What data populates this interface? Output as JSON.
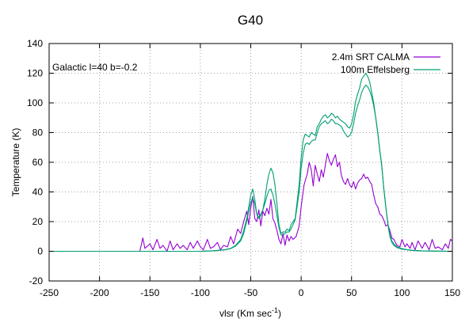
{
  "chart_data": {
    "type": "line",
    "title": "G40",
    "xlabel": "vlsr (Km sec",
    "xlabel_sup": "-1",
    "xlabel_close": ")",
    "ylabel": "Temperature (K)",
    "annotation": "Galactic l=40 b=-0.2",
    "xlim": [
      -250,
      150
    ],
    "ylim": [
      -20,
      140
    ],
    "xticks": [
      -250,
      -200,
      -150,
      -100,
      -50,
      0,
      50,
      100,
      150
    ],
    "yticks": [
      -20,
      0,
      20,
      40,
      60,
      80,
      100,
      120,
      140
    ],
    "grid": true,
    "legend_position": "top-right",
    "series": [
      {
        "name": "2.4m SRT CALMA",
        "color": "#9400d3",
        "points": [
          [
            -160,
            0
          ],
          [
            -157,
            9
          ],
          [
            -155,
            2
          ],
          [
            -150,
            5
          ],
          [
            -147,
            1
          ],
          [
            -143,
            8
          ],
          [
            -140,
            2
          ],
          [
            -137,
            4
          ],
          [
            -133,
            0
          ],
          [
            -130,
            7
          ],
          [
            -127,
            1
          ],
          [
            -123,
            5
          ],
          [
            -120,
            2
          ],
          [
            -117,
            4
          ],
          [
            -113,
            1
          ],
          [
            -110,
            6
          ],
          [
            -107,
            2
          ],
          [
            -103,
            7
          ],
          [
            -100,
            3
          ],
          [
            -97,
            1
          ],
          [
            -93,
            8
          ],
          [
            -90,
            2
          ],
          [
            -87,
            3
          ],
          [
            -83,
            6
          ],
          [
            -80,
            1
          ],
          [
            -77,
            4
          ],
          [
            -73,
            3
          ],
          [
            -70,
            10
          ],
          [
            -67,
            5
          ],
          [
            -63,
            15
          ],
          [
            -60,
            12
          ],
          [
            -57,
            20
          ],
          [
            -54,
            27
          ],
          [
            -52,
            18
          ],
          [
            -50,
            29
          ],
          [
            -48,
            37
          ],
          [
            -46,
            22
          ],
          [
            -44,
            20
          ],
          [
            -42,
            28
          ],
          [
            -40,
            17
          ],
          [
            -38,
            27
          ],
          [
            -36,
            24
          ],
          [
            -34,
            29
          ],
          [
            -32,
            25
          ],
          [
            -30,
            35
          ],
          [
            -28,
            22
          ],
          [
            -26,
            19
          ],
          [
            -24,
            14
          ],
          [
            -22,
            8
          ],
          [
            -20,
            5
          ],
          [
            -18,
            12
          ],
          [
            -16,
            4
          ],
          [
            -14,
            11
          ],
          [
            -12,
            7
          ],
          [
            -10,
            10
          ],
          [
            -8,
            8
          ],
          [
            -5,
            10
          ],
          [
            -2,
            17
          ],
          [
            0,
            30
          ],
          [
            3,
            45
          ],
          [
            6,
            52
          ],
          [
            8,
            60
          ],
          [
            10,
            55
          ],
          [
            12,
            44
          ],
          [
            14,
            58
          ],
          [
            16,
            52
          ],
          [
            18,
            47
          ],
          [
            20,
            55
          ],
          [
            22,
            50
          ],
          [
            24,
            58
          ],
          [
            26,
            66
          ],
          [
            28,
            61
          ],
          [
            30,
            58
          ],
          [
            32,
            62
          ],
          [
            34,
            65
          ],
          [
            36,
            57
          ],
          [
            38,
            60
          ],
          [
            40,
            51
          ],
          [
            42,
            47
          ],
          [
            44,
            45
          ],
          [
            46,
            49
          ],
          [
            48,
            45
          ],
          [
            50,
            43
          ],
          [
            52,
            47
          ],
          [
            54,
            42
          ],
          [
            56,
            46
          ],
          [
            58,
            48
          ],
          [
            60,
            49
          ],
          [
            62,
            52
          ],
          [
            64,
            49
          ],
          [
            66,
            50
          ],
          [
            68,
            47
          ],
          [
            70,
            45
          ],
          [
            72,
            38
          ],
          [
            74,
            32
          ],
          [
            76,
            30
          ],
          [
            78,
            25
          ],
          [
            80,
            24
          ],
          [
            82,
            21
          ],
          [
            84,
            17
          ],
          [
            86,
            18
          ],
          [
            88,
            14
          ],
          [
            90,
            9
          ],
          [
            92,
            8
          ],
          [
            95,
            4
          ],
          [
            98,
            3
          ],
          [
            100,
            8
          ],
          [
            103,
            3
          ],
          [
            105,
            5
          ],
          [
            108,
            2
          ],
          [
            110,
            6
          ],
          [
            113,
            1
          ],
          [
            116,
            7
          ],
          [
            120,
            2
          ],
          [
            123,
            6
          ],
          [
            127,
            1
          ],
          [
            130,
            8
          ],
          [
            133,
            2
          ],
          [
            136,
            3
          ],
          [
            140,
            1
          ],
          [
            143,
            5
          ],
          [
            146,
            2
          ],
          [
            148,
            8
          ],
          [
            150,
            7
          ]
        ]
      },
      {
        "name": "100m Effelsberg",
        "color": "#009e73",
        "points": [
          [
            -250,
            0
          ],
          [
            -200,
            0
          ],
          [
            -150,
            0
          ],
          [
            -120,
            0
          ],
          [
            -100,
            0
          ],
          [
            -90,
            0.2
          ],
          [
            -85,
            0.5
          ],
          [
            -80,
            0.8
          ],
          [
            -75,
            1.2
          ],
          [
            -70,
            2
          ],
          [
            -65,
            4
          ],
          [
            -60,
            8
          ],
          [
            -57,
            14
          ],
          [
            -54,
            22
          ],
          [
            -52,
            30
          ],
          [
            -50,
            38
          ],
          [
            -48,
            42
          ],
          [
            -46,
            35
          ],
          [
            -44,
            25
          ],
          [
            -42,
            22
          ],
          [
            -40,
            24
          ],
          [
            -38,
            28
          ],
          [
            -36,
            35
          ],
          [
            -34,
            45
          ],
          [
            -32,
            52
          ],
          [
            -30,
            56
          ],
          [
            -28,
            53
          ],
          [
            -26,
            45
          ],
          [
            -24,
            32
          ],
          [
            -22,
            18
          ],
          [
            -20,
            12
          ],
          [
            -18,
            13
          ],
          [
            -16,
            13
          ],
          [
            -14,
            15
          ],
          [
            -12,
            14
          ],
          [
            -10,
            18
          ],
          [
            -8,
            20
          ],
          [
            -6,
            22
          ],
          [
            -4,
            33
          ],
          [
            -2,
            45
          ],
          [
            0,
            63
          ],
          [
            2,
            75
          ],
          [
            4,
            79
          ],
          [
            6,
            78
          ],
          [
            8,
            77
          ],
          [
            10,
            80
          ],
          [
            12,
            79
          ],
          [
            14,
            78
          ],
          [
            16,
            84
          ],
          [
            18,
            86
          ],
          [
            20,
            89
          ],
          [
            22,
            91
          ],
          [
            24,
            92
          ],
          [
            26,
            90
          ],
          [
            28,
            91
          ],
          [
            30,
            93
          ],
          [
            32,
            92
          ],
          [
            34,
            90
          ],
          [
            36,
            91
          ],
          [
            38,
            89
          ],
          [
            40,
            88
          ],
          [
            42,
            87
          ],
          [
            44,
            86
          ],
          [
            46,
            84
          ],
          [
            48,
            83
          ],
          [
            50,
            86
          ],
          [
            52,
            92
          ],
          [
            54,
            101
          ],
          [
            56,
            106
          ],
          [
            58,
            110
          ],
          [
            60,
            116
          ],
          [
            62,
            118
          ],
          [
            64,
            120
          ],
          [
            66,
            118
          ],
          [
            68,
            114
          ],
          [
            70,
            107
          ],
          [
            72,
            100
          ],
          [
            74,
            90
          ],
          [
            76,
            80
          ],
          [
            78,
            68
          ],
          [
            80,
            58
          ],
          [
            82,
            42
          ],
          [
            84,
            30
          ],
          [
            86,
            18
          ],
          [
            88,
            10
          ],
          [
            90,
            6
          ],
          [
            92,
            4
          ],
          [
            95,
            2.5
          ],
          [
            100,
            1.5
          ],
          [
            105,
            1
          ],
          [
            110,
            0.6
          ],
          [
            115,
            0.4
          ],
          [
            120,
            0.2
          ],
          [
            130,
            0.1
          ],
          [
            150,
            0
          ]
        ]
      },
      {
        "name": "",
        "color": "#009e73",
        "points": [
          [
            -250,
            0
          ],
          [
            -150,
            0
          ],
          [
            -100,
            0
          ],
          [
            -85,
            0.4
          ],
          [
            -75,
            1
          ],
          [
            -70,
            1.8
          ],
          [
            -65,
            3.5
          ],
          [
            -60,
            7
          ],
          [
            -57,
            12
          ],
          [
            -54,
            20
          ],
          [
            -52,
            27
          ],
          [
            -50,
            33
          ],
          [
            -48,
            36
          ],
          [
            -46,
            32
          ],
          [
            -44,
            25
          ],
          [
            -42,
            23
          ],
          [
            -40,
            25
          ],
          [
            -38,
            28
          ],
          [
            -36,
            32
          ],
          [
            -34,
            37
          ],
          [
            -32,
            41
          ],
          [
            -30,
            42
          ],
          [
            -28,
            38
          ],
          [
            -26,
            32
          ],
          [
            -24,
            24
          ],
          [
            -22,
            16
          ],
          [
            -20,
            11
          ],
          [
            -18,
            11
          ],
          [
            -16,
            12
          ],
          [
            -14,
            13
          ],
          [
            -12,
            13
          ],
          [
            -10,
            15
          ],
          [
            -8,
            18
          ],
          [
            -6,
            21
          ],
          [
            -4,
            30
          ],
          [
            -2,
            40
          ],
          [
            0,
            56
          ],
          [
            2,
            66
          ],
          [
            4,
            72
          ],
          [
            6,
            73
          ],
          [
            8,
            72
          ],
          [
            10,
            74
          ],
          [
            12,
            75
          ],
          [
            14,
            75
          ],
          [
            16,
            80
          ],
          [
            18,
            84
          ],
          [
            20,
            86
          ],
          [
            22,
            87
          ],
          [
            24,
            88
          ],
          [
            26,
            86
          ],
          [
            28,
            87
          ],
          [
            30,
            89
          ],
          [
            32,
            88
          ],
          [
            34,
            86
          ],
          [
            36,
            86
          ],
          [
            38,
            85
          ],
          [
            40,
            84
          ],
          [
            42,
            81
          ],
          [
            44,
            79
          ],
          [
            46,
            77
          ],
          [
            48,
            78
          ],
          [
            50,
            80
          ],
          [
            52,
            86
          ],
          [
            54,
            93
          ],
          [
            56,
            98
          ],
          [
            58,
            102
          ],
          [
            60,
            107
          ],
          [
            62,
            110
          ],
          [
            64,
            112
          ],
          [
            66,
            111
          ],
          [
            68,
            108
          ],
          [
            70,
            104
          ],
          [
            72,
            98
          ],
          [
            74,
            90
          ],
          [
            76,
            80
          ],
          [
            78,
            68
          ],
          [
            80,
            57
          ],
          [
            82,
            42
          ],
          [
            84,
            30
          ],
          [
            86,
            19
          ],
          [
            88,
            11
          ],
          [
            90,
            7
          ],
          [
            92,
            5
          ],
          [
            95,
            3
          ],
          [
            100,
            1.8
          ],
          [
            105,
            1.1
          ],
          [
            110,
            0.7
          ],
          [
            120,
            0.3
          ],
          [
            150,
            0
          ]
        ]
      }
    ]
  }
}
